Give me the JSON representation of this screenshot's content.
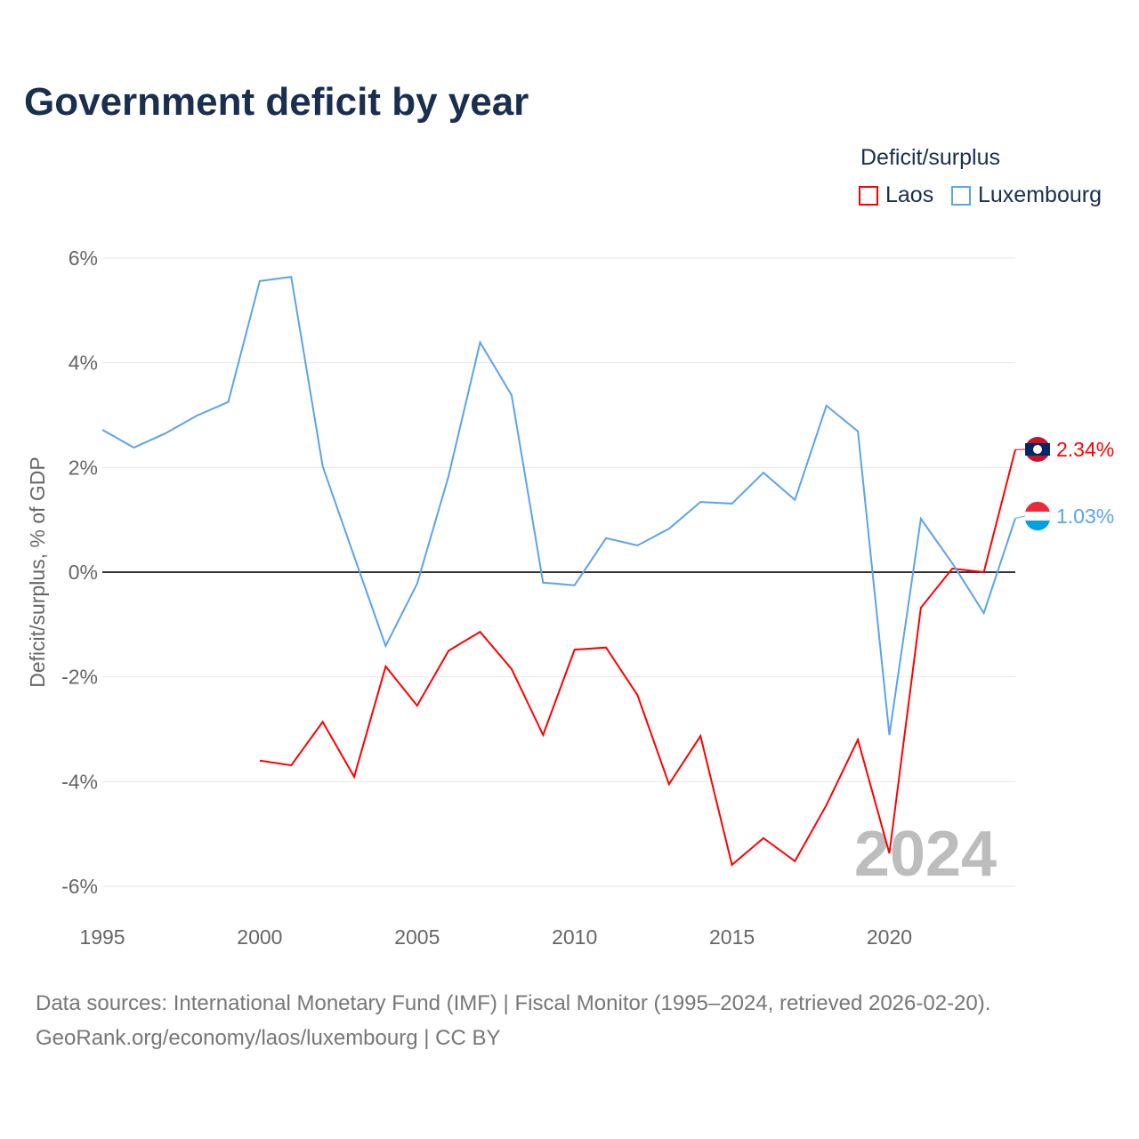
{
  "title": "Government deficit by year",
  "legend": {
    "title": "Deficit/surplus",
    "items": [
      {
        "label": "Laos",
        "color": "#ff0000"
      },
      {
        "label": "Luxembourg",
        "color": "#5ba3ec"
      }
    ]
  },
  "source": {
    "line1": "Data sources: International Monetary Fund (IMF) | Fiscal Monitor (1995–2024, retrieved 2026-02-20).",
    "line2": "GeoRank.org/economy/laos/luxembourg | CC BY"
  },
  "chart_data": {
    "type": "line",
    "title": "Government deficit by year",
    "ylabel": "Deficit/surplus, % of GDP",
    "xlabel": "",
    "xlim": [
      1995,
      2024
    ],
    "ylim": [
      -6,
      6
    ],
    "x_ticks": [
      1995,
      2000,
      2005,
      2010,
      2015,
      2020
    ],
    "y_ticks": [
      {
        "v": 6,
        "label": "6%"
      },
      {
        "v": 4,
        "label": "4%"
      },
      {
        "v": 2,
        "label": "2%"
      },
      {
        "v": 0,
        "label": "0%"
      },
      {
        "v": -2,
        "label": "-2%"
      },
      {
        "v": -4,
        "label": "-4%"
      },
      {
        "v": -6,
        "label": "-6%"
      }
    ],
    "watermark": "2024",
    "series": [
      {
        "name": "Laos",
        "color": "#ff0000",
        "end_label": "2.34%",
        "x": [
          2000,
          2001,
          2002,
          2003,
          2004,
          2005,
          2006,
          2007,
          2008,
          2009,
          2010,
          2011,
          2012,
          2013,
          2014,
          2015,
          2016,
          2017,
          2018,
          2019,
          2020,
          2021,
          2022,
          2023,
          2024
        ],
        "values": [
          -3.6,
          -3.69,
          -2.86,
          -3.91,
          -1.8,
          -2.55,
          -1.5,
          -1.14,
          -1.85,
          -3.11,
          -1.48,
          -1.44,
          -2.35,
          -4.05,
          -3.13,
          -5.59,
          -5.08,
          -5.52,
          -4.45,
          -3.2,
          -5.37,
          -0.68,
          0.07,
          0.0,
          2.34
        ]
      },
      {
        "name": "Luxembourg",
        "color": "#5ba3ec",
        "end_label": "1.03%",
        "x": [
          1995,
          1996,
          1997,
          1998,
          1999,
          2000,
          2001,
          2002,
          2003,
          2004,
          2005,
          2006,
          2007,
          2008,
          2009,
          2010,
          2011,
          2012,
          2013,
          2014,
          2015,
          2016,
          2017,
          2018,
          2019,
          2020,
          2021,
          2022,
          2023,
          2024
        ],
        "values": [
          2.72,
          2.38,
          2.65,
          2.99,
          3.25,
          5.56,
          5.64,
          2.02,
          0.3,
          -1.41,
          -0.22,
          1.84,
          4.39,
          3.38,
          -0.2,
          -0.25,
          0.65,
          0.51,
          0.83,
          1.34,
          1.31,
          1.9,
          1.38,
          3.18,
          2.69,
          -3.11,
          1.02,
          0.17,
          -0.78,
          1.03
        ]
      }
    ]
  }
}
